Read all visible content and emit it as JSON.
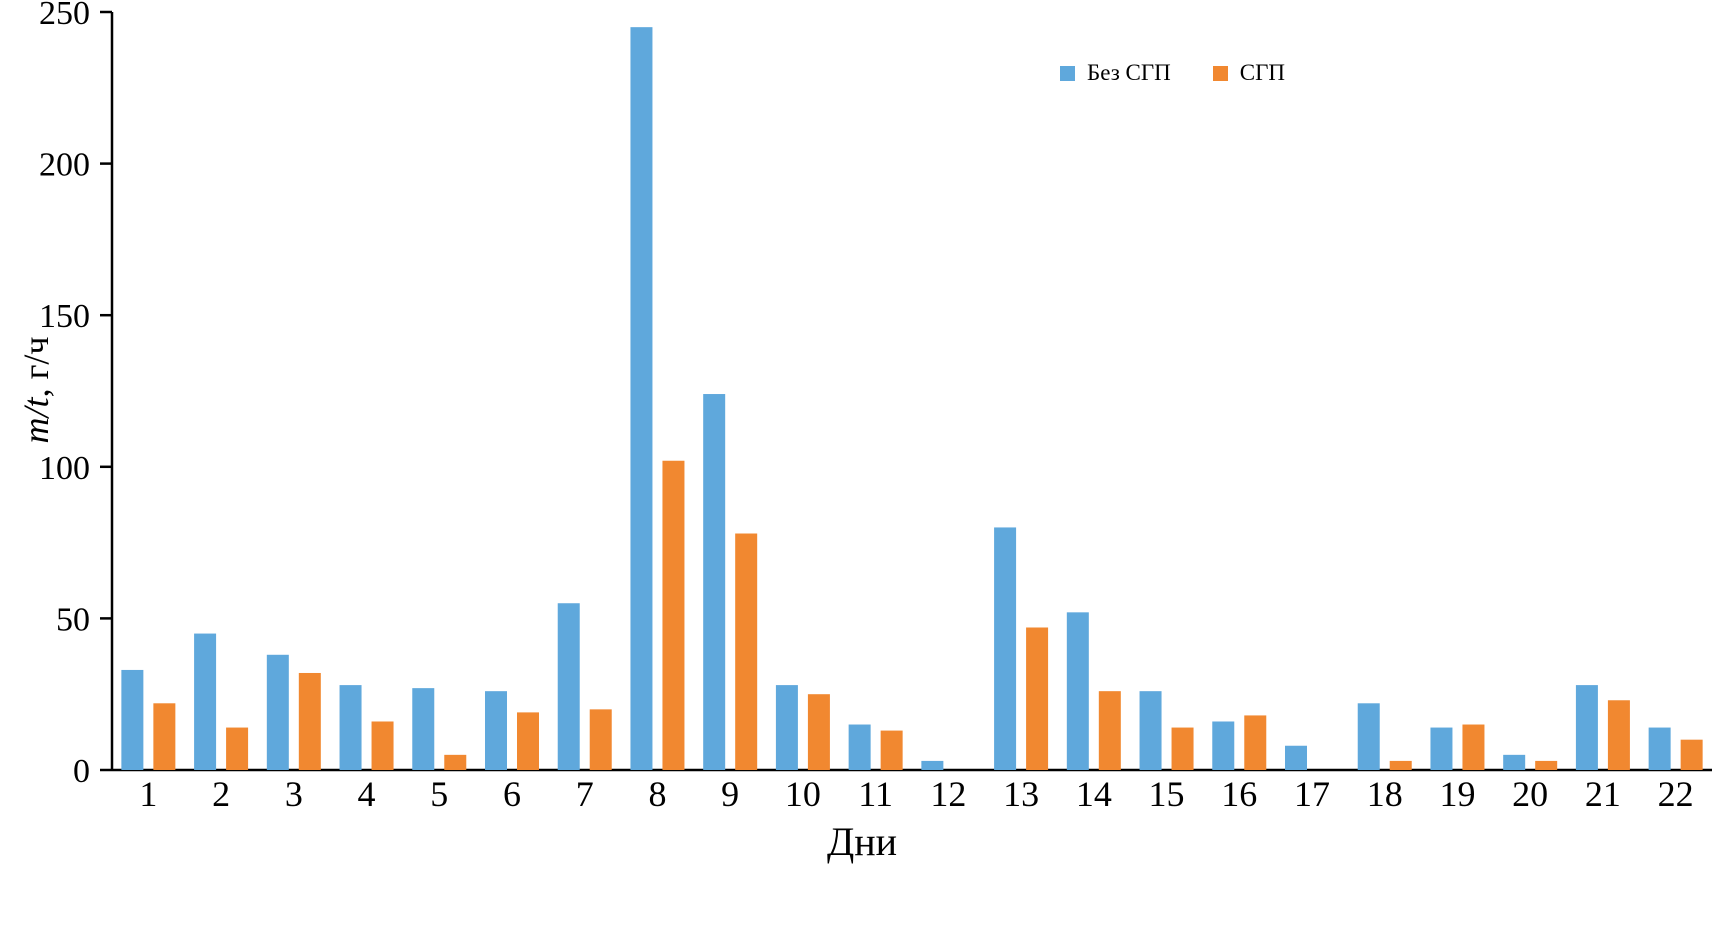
{
  "chart_data": {
    "type": "bar",
    "title": "",
    "xlabel": "Дни",
    "ylabel": "m/t, г/ч",
    "ylabel_parts": {
      "italic": "m/t",
      "rest": ", г/ч"
    },
    "ylim": [
      0,
      250
    ],
    "yticks": [
      0,
      50,
      100,
      150,
      200,
      250
    ],
    "grid": false,
    "legend_position": "top-right",
    "categories": [
      "1",
      "2",
      "3",
      "4",
      "5",
      "6",
      "7",
      "8",
      "9",
      "10",
      "11",
      "12",
      "13",
      "14",
      "15",
      "16",
      "17",
      "18",
      "19",
      "20",
      "21",
      "22"
    ],
    "series": [
      {
        "name": "Без СГП",
        "color": "#5FA8DC",
        "values": [
          33,
          45,
          38,
          28,
          27,
          26,
          55,
          245,
          124,
          28,
          15,
          3,
          80,
          52,
          26,
          16,
          8,
          22,
          14,
          5,
          28,
          14
        ]
      },
      {
        "name": "СГП",
        "color": "#F18830",
        "values": [
          22,
          14,
          32,
          16,
          5,
          19,
          20,
          102,
          78,
          25,
          13,
          0,
          47,
          26,
          14,
          18,
          0,
          3,
          15,
          3,
          23,
          10
        ]
      }
    ],
    "axis_color": "#000000"
  }
}
